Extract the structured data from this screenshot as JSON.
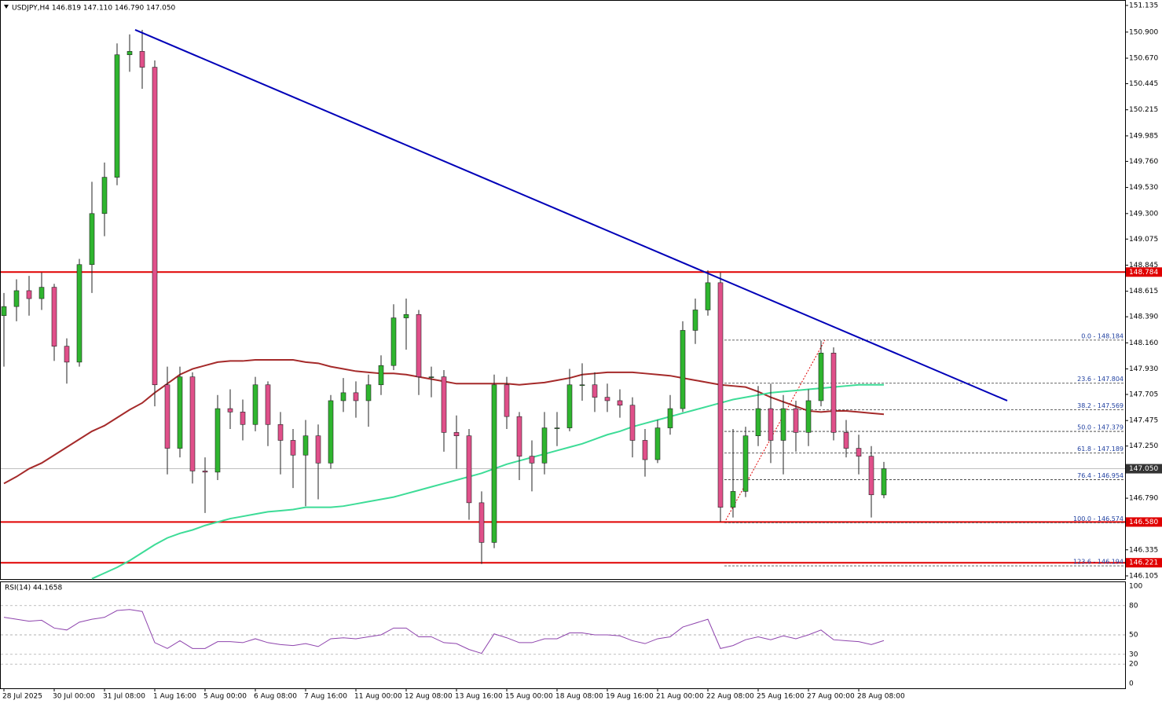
{
  "chart_data": {
    "type": "candlestick",
    "title": "USDJPY,H4  146.819 147.110 146.790 147.050",
    "categories": [
      "28 Jul 2025",
      null,
      null,
      null,
      "30 Jul 00:00",
      null,
      null,
      null,
      "31 Jul 08:00",
      null,
      null,
      null,
      "1 Aug 16:00",
      null,
      null,
      null,
      "5 Aug 00:00",
      null,
      null,
      null,
      "6 Aug 08:00",
      null,
      null,
      null,
      "7 Aug 16:00",
      null,
      null,
      null,
      "11 Aug 00:00",
      null,
      null,
      null,
      "12 Aug 08:00",
      null,
      null,
      null,
      "13 Aug 16:00",
      null,
      null,
      null,
      "15 Aug 00:00",
      null,
      null,
      null,
      "18 Aug 08:00",
      null,
      null,
      null,
      "19 Aug 16:00",
      null,
      null,
      null,
      "21 Aug 00:00",
      null,
      null,
      null,
      "22 Aug 08:00",
      null,
      null,
      null,
      "25 Aug 16:00",
      null,
      null,
      null,
      "27 Aug 00:00",
      null,
      null,
      null,
      "28 Aug 08:00",
      null,
      null
    ],
    "open": [
      148.4,
      148.48,
      148.62,
      148.55,
      148.65,
      148.13,
      147.99,
      148.85,
      149.3,
      149.62,
      150.7,
      150.73,
      150.59,
      147.79,
      147.23,
      147.86,
      147.03,
      147.02,
      147.58,
      147.55,
      147.44,
      147.79,
      147.44,
      147.3,
      147.17,
      147.34,
      147.1,
      147.65,
      147.72,
      147.65,
      147.79,
      147.96,
      148.38,
      148.41,
      147.86,
      147.86,
      147.37,
      147.34,
      146.75,
      146.4,
      147.79,
      147.51,
      147.16,
      147.1,
      147.41,
      147.41,
      147.79,
      147.79,
      147.68,
      147.65,
      147.61,
      147.3,
      147.13,
      147.41,
      147.58,
      148.27,
      148.45,
      148.69,
      146.71,
      146.85,
      147.34,
      147.58,
      147.3,
      147.58,
      147.37,
      147.65,
      148.07,
      147.37,
      147.23,
      147.16,
      146.819
    ],
    "high": [
      148.6,
      148.72,
      148.75,
      148.78,
      148.68,
      148.2,
      148.9,
      149.58,
      149.75,
      150.8,
      150.88,
      150.92,
      150.65,
      147.95,
      147.95,
      147.9,
      147.15,
      147.7,
      147.75,
      147.66,
      147.86,
      147.82,
      147.55,
      147.4,
      147.48,
      147.44,
      147.7,
      147.85,
      147.82,
      147.88,
      148.05,
      148.5,
      148.55,
      148.45,
      147.95,
      147.92,
      147.52,
      147.4,
      146.85,
      147.88,
      147.86,
      147.55,
      147.3,
      147.55,
      147.55,
      147.93,
      147.98,
      147.9,
      147.8,
      147.75,
      147.68,
      147.4,
      147.48,
      147.7,
      148.35,
      148.55,
      148.8,
      148.78,
      147.4,
      147.42,
      147.78,
      147.8,
      147.7,
      147.65,
      147.75,
      148.18,
      148.12,
      147.48,
      147.35,
      147.25,
      147.11
    ],
    "low": [
      147.95,
      148.35,
      148.4,
      148.45,
      148.0,
      147.8,
      147.95,
      148.6,
      149.1,
      149.55,
      150.55,
      150.4,
      147.6,
      147.0,
      147.15,
      146.92,
      146.66,
      146.95,
      147.4,
      147.3,
      147.38,
      147.25,
      147.0,
      146.88,
      146.72,
      146.78,
      147.05,
      147.55,
      147.5,
      147.42,
      147.7,
      147.92,
      148.1,
      147.7,
      147.68,
      147.2,
      147.05,
      146.6,
      146.21,
      146.35,
      147.4,
      146.95,
      146.85,
      147.0,
      147.25,
      147.38,
      147.65,
      147.55,
      147.55,
      147.5,
      147.15,
      146.98,
      147.1,
      147.35,
      147.55,
      148.15,
      148.4,
      146.58,
      146.62,
      146.8,
      147.25,
      147.1,
      147.0,
      147.2,
      147.25,
      147.6,
      147.3,
      147.15,
      147.0,
      146.62,
      146.79
    ],
    "close": [
      148.48,
      148.62,
      148.55,
      148.65,
      148.13,
      147.99,
      148.85,
      149.3,
      149.62,
      150.7,
      150.73,
      150.59,
      147.79,
      147.23,
      147.86,
      147.03,
      147.02,
      147.58,
      147.55,
      147.44,
      147.79,
      147.44,
      147.3,
      147.17,
      147.34,
      147.1,
      147.65,
      147.72,
      147.65,
      147.79,
      147.96,
      148.38,
      148.41,
      147.86,
      147.86,
      147.37,
      147.34,
      146.75,
      146.4,
      147.79,
      147.51,
      147.16,
      147.1,
      147.41,
      147.41,
      147.79,
      147.79,
      147.68,
      147.65,
      147.61,
      147.3,
      147.13,
      147.41,
      147.58,
      148.27,
      148.45,
      148.69,
      146.71,
      146.85,
      147.34,
      147.58,
      147.3,
      147.58,
      147.37,
      147.65,
      148.07,
      147.37,
      147.23,
      147.16,
      146.82,
      147.05
    ],
    "up_color": "#2fb52f",
    "down_color": "#e0508a",
    "series": [
      {
        "color": "#a52a2a",
        "values": [
          146.92,
          146.98,
          147.05,
          147.1,
          147.17,
          147.24,
          147.31,
          147.38,
          147.43,
          147.5,
          147.57,
          147.63,
          147.72,
          147.8,
          147.88,
          147.93,
          147.96,
          147.99,
          148.0,
          148.0,
          148.01,
          148.01,
          148.01,
          148.01,
          147.99,
          147.98,
          147.95,
          147.93,
          147.91,
          147.9,
          147.89,
          147.89,
          147.88,
          147.86,
          147.84,
          147.82,
          147.8,
          147.8,
          147.8,
          147.8,
          147.8,
          147.79,
          147.8,
          147.81,
          147.83,
          147.85,
          147.88,
          147.89,
          147.9,
          147.9,
          147.9,
          147.89,
          147.88,
          147.87,
          147.85,
          147.83,
          147.81,
          147.79,
          147.78,
          147.77,
          147.73,
          147.68,
          147.64,
          147.6,
          147.56,
          147.55,
          147.56,
          147.56,
          147.55,
          147.54,
          147.53
        ]
      },
      {
        "color": "#3ddc97",
        "values": [
          null,
          null,
          null,
          null,
          null,
          null,
          null,
          146.08,
          146.13,
          146.18,
          146.24,
          146.31,
          146.38,
          146.44,
          146.48,
          146.51,
          146.55,
          146.58,
          146.61,
          146.63,
          146.65,
          146.67,
          146.68,
          146.69,
          146.71,
          146.71,
          146.71,
          146.72,
          146.74,
          146.76,
          146.78,
          146.8,
          146.83,
          146.86,
          146.89,
          146.92,
          146.95,
          146.98,
          147.01,
          147.05,
          147.09,
          147.12,
          147.15,
          147.18,
          147.21,
          147.24,
          147.27,
          147.31,
          147.35,
          147.38,
          147.42,
          147.45,
          147.48,
          147.51,
          147.54,
          147.57,
          147.6,
          147.63,
          147.66,
          147.68,
          147.7,
          147.72,
          147.73,
          147.74,
          147.75,
          147.76,
          147.77,
          147.78,
          147.79,
          147.79,
          147.79
        ]
      }
    ],
    "ylim": [
      146.077,
      151.183
    ],
    "yticks": [
      {
        "value": 151.135,
        "label": "151.135"
      },
      {
        "value": 150.9,
        "label": "150.900"
      },
      {
        "value": 150.67,
        "label": "150.670"
      },
      {
        "value": 150.445,
        "label": "150.445"
      },
      {
        "value": 150.215,
        "label": "150.215"
      },
      {
        "value": 149.985,
        "label": "149.985"
      },
      {
        "value": 149.76,
        "label": "149.760"
      },
      {
        "value": 149.53,
        "label": "149.530"
      },
      {
        "value": 149.3,
        "label": "149.300"
      },
      {
        "value": 149.075,
        "label": "149.075"
      },
      {
        "value": 148.845,
        "label": "148.845"
      },
      {
        "value": 148.615,
        "label": "148.615"
      },
      {
        "value": 148.39,
        "label": "148.390"
      },
      {
        "value": 148.16,
        "label": "148.160"
      },
      {
        "value": 147.93,
        "label": "147.930"
      },
      {
        "value": 147.705,
        "label": "147.705"
      },
      {
        "value": 147.475,
        "label": "147.475"
      },
      {
        "value": 147.25,
        "label": "147.250"
      },
      {
        "value": 146.79,
        "label": "146.790"
      },
      {
        "value": 146.335,
        "label": "146.335"
      },
      {
        "value": 146.105,
        "label": "146.105"
      }
    ],
    "levels": [
      {
        "value": 148.784,
        "label": "148.784",
        "color": "#e00000"
      },
      {
        "value": 146.58,
        "label": "146.580",
        "color": "#e00000"
      },
      {
        "value": 146.221,
        "label": "146.221",
        "color": "#e00000"
      }
    ],
    "current": {
      "value": 147.05,
      "label": "147.050",
      "color": "#999999"
    },
    "trendline": {
      "start": 150.92,
      "end": 147.65,
      "color": "#0000b8"
    },
    "fib": [
      {
        "value": 148.184,
        "label": "0.0 - 148.184"
      },
      {
        "value": 147.804,
        "label": "23.6 - 147.804"
      },
      {
        "value": 147.569,
        "label": "38.2 - 147.569"
      },
      {
        "value": 147.379,
        "label": "50.0 - 147.379"
      },
      {
        "value": 147.189,
        "label": "61.8 - 147.189"
      },
      {
        "value": 146.954,
        "label": "76.4 - 146.954"
      },
      {
        "value": 146.574,
        "label": "100.0 - 146.574"
      },
      {
        "value": 146.194,
        "label": "123.6 - 146.194"
      }
    ],
    "rsi": {
      "title": "RSI(14) 44.1658",
      "color": "#8e44ad",
      "ylim": [
        0,
        100
      ],
      "yticks": [
        100,
        80,
        50,
        30,
        20,
        0
      ],
      "values": [
        68,
        66,
        64,
        65,
        57,
        55,
        63,
        66,
        68,
        75,
        76,
        74,
        42,
        36,
        44,
        36,
        36,
        43,
        43,
        42,
        46,
        42,
        40,
        39,
        41,
        38,
        46,
        47,
        46,
        48,
        50,
        57,
        57,
        48,
        48,
        42,
        41,
        35,
        31,
        51,
        47,
        42,
        42,
        46,
        46,
        52,
        52,
        50,
        50,
        49,
        44,
        41,
        46,
        48,
        58,
        62,
        66,
        36,
        39,
        45,
        48,
        45,
        49,
        46,
        50,
        55,
        45,
        44,
        43,
        40,
        44.1658
      ]
    }
  }
}
